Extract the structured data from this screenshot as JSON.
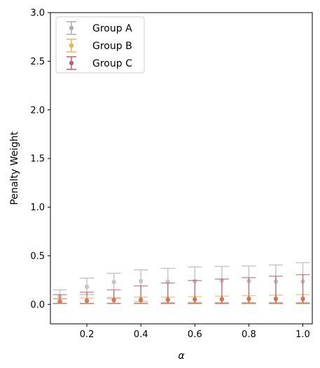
{
  "chart_data": {
    "type": "scatter",
    "title": "",
    "xlabel": "α",
    "ylabel": "Penalty Weight",
    "xlim": [
      0.065,
      1.035
    ],
    "ylim": [
      -0.2,
      3.0
    ],
    "xticks": [
      0.2,
      0.4,
      0.6,
      0.8,
      1.0
    ],
    "xtick_labels": [
      "0.2",
      "0.4",
      "0.6",
      "0.8",
      "1.0"
    ],
    "yticks": [
      0.0,
      0.5,
      1.0,
      1.5,
      2.0,
      2.5,
      3.0
    ],
    "ytick_labels": [
      "0.0",
      "0.5",
      "1.0",
      "1.5",
      "2.0",
      "2.5",
      "3.0"
    ],
    "grid": false,
    "legend_position": "top-left",
    "x": [
      0.1,
      0.2,
      0.3,
      0.4,
      0.5,
      0.6,
      0.7,
      0.8,
      0.9,
      1.0
    ],
    "series": [
      {
        "name": "Group A",
        "color": "#999999",
        "y": [
          0.08,
          0.18,
          0.23,
          0.24,
          0.235,
          0.24,
          0.245,
          0.24,
          0.235,
          0.235
        ],
        "err_low": [
          0.06,
          0.1,
          0.06,
          0.03,
          0.02,
          0.02,
          0.02,
          0.02,
          0.02,
          0.02
        ],
        "err_high": [
          0.15,
          0.27,
          0.32,
          0.355,
          0.37,
          0.385,
          0.39,
          0.395,
          0.405,
          0.43
        ]
      },
      {
        "name": "Group B",
        "color": "#f0a020",
        "y": [
          0.03,
          0.035,
          0.04,
          0.04,
          0.045,
          0.045,
          0.05,
          0.05,
          0.05,
          0.05
        ],
        "err_low": [
          0.01,
          0.01,
          0.01,
          0.01,
          0.01,
          0.01,
          0.01,
          0.01,
          0.01,
          0.01
        ],
        "err_high": [
          0.055,
          0.065,
          0.07,
          0.075,
          0.075,
          0.08,
          0.085,
          0.09,
          0.095,
          0.1
        ]
      },
      {
        "name": "Group C",
        "color": "#b03a48",
        "y": [
          0.03,
          0.04,
          0.045,
          0.05,
          0.05,
          0.055,
          0.055,
          0.06,
          0.06,
          0.06
        ],
        "err_low": [
          0.01,
          0.01,
          0.01,
          0.01,
          0.01,
          0.01,
          0.01,
          0.01,
          0.01,
          0.01
        ],
        "err_high": [
          0.1,
          0.125,
          0.15,
          0.19,
          0.22,
          0.245,
          0.26,
          0.275,
          0.29,
          0.305
        ]
      }
    ]
  }
}
